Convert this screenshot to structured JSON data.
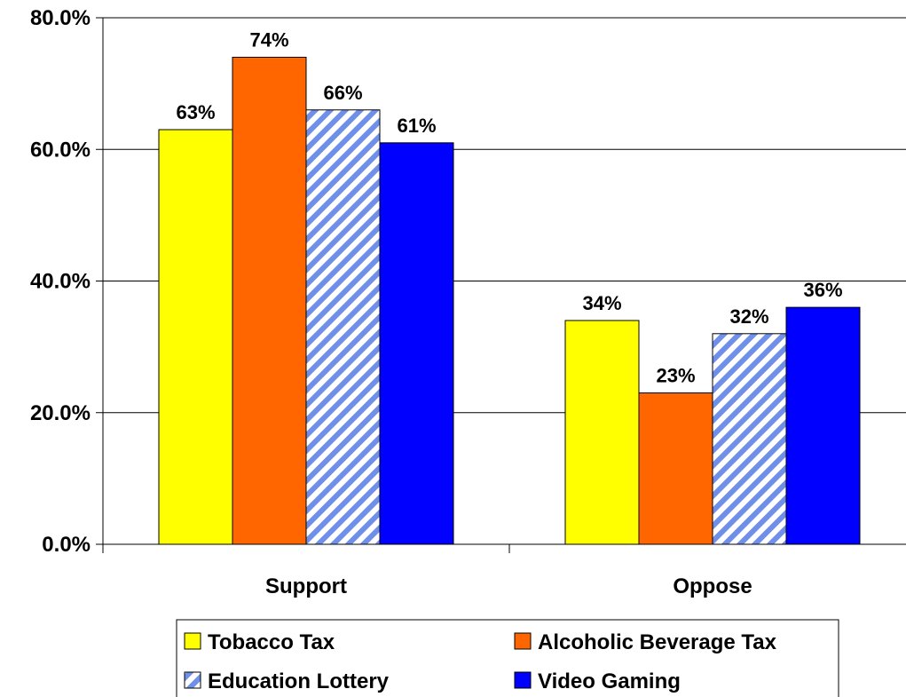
{
  "chart_data": {
    "type": "bar",
    "title": "",
    "xlabel": "",
    "ylabel": "",
    "categories": [
      "Support",
      "Oppose"
    ],
    "ylim": [
      0,
      80
    ],
    "yticks": [
      "0.0%",
      "20.0%",
      "40.0%",
      "60.0%",
      "80.0%"
    ],
    "grid": true,
    "legend_position": "bottom",
    "series": [
      {
        "name": "Tobacco Tax",
        "values": [
          63,
          34
        ],
        "labels": [
          "63%",
          "34%"
        ],
        "color": "#FFFF00",
        "pattern": "solid"
      },
      {
        "name": "Alcoholic Beverage Tax",
        "values": [
          74,
          23
        ],
        "labels": [
          "74%",
          "23%"
        ],
        "color": "#FF6600",
        "pattern": "solid"
      },
      {
        "name": "Education Lottery",
        "values": [
          66,
          32
        ],
        "labels": [
          "66%",
          "32%"
        ],
        "color": "#6F8FE8",
        "pattern": "diagonal-stripes"
      },
      {
        "name": "Video Gaming",
        "values": [
          61,
          36
        ],
        "labels": [
          "61%",
          "36%"
        ],
        "color": "#0000FF",
        "pattern": "solid"
      }
    ]
  }
}
